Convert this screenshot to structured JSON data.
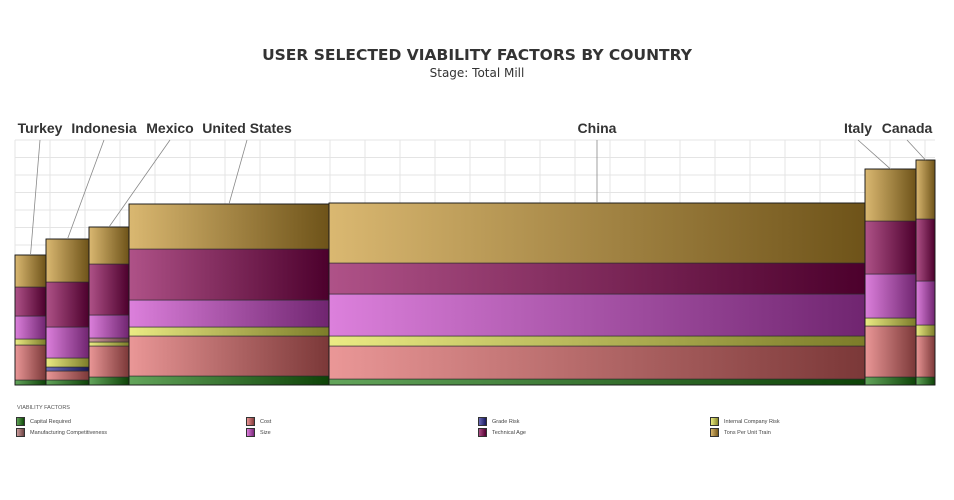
{
  "chart_data": {
    "type": "bar",
    "subtype": "variable-width stacked bar (mekko)",
    "title": "USER SELECTED VIABILITY FACTORS BY COUNTRY",
    "subtitle": "Stage: Total Mill",
    "legend_title": "VIABILITY FACTORS",
    "legend_position": "bottom",
    "grid": true,
    "ylim": [
      0,
      245
    ],
    "series": [
      {
        "name": "Capital Required",
        "color": "#1a7a0e",
        "values": [
          5,
          5,
          8,
          9,
          6,
          8,
          8
        ]
      },
      {
        "name": "Cost",
        "color": "#e06666",
        "values": [
          35,
          9,
          31,
          40,
          33,
          51,
          41
        ]
      },
      {
        "name": "Grade Risk",
        "color": "#2a2a9a",
        "values": [
          0,
          4,
          0,
          0,
          0,
          0,
          0
        ]
      },
      {
        "name": "Internal Company Risk",
        "color": "#e2e24a",
        "values": [
          6,
          9,
          4,
          9,
          10,
          8,
          11
        ]
      },
      {
        "name": "Manufacturing Competitiveness",
        "color": "#b57070",
        "values": [
          0,
          0,
          4,
          0,
          0,
          0,
          0
        ]
      },
      {
        "name": "Size",
        "color": "#cc44cc",
        "values": [
          23,
          31,
          23,
          27,
          42,
          44,
          44
        ]
      },
      {
        "name": "Technical Age",
        "color": "#8a0050",
        "values": [
          29,
          45,
          51,
          51,
          31,
          53,
          62
        ]
      },
      {
        "name": "Tons Per Unit Train",
        "color": "#c8962e",
        "values": [
          32,
          43,
          37,
          45,
          60,
          52,
          59
        ]
      }
    ],
    "categories": [
      "Turkey",
      "Indonesia",
      "Mexico",
      "United States",
      "China",
      "Italy",
      "Canada"
    ],
    "widths": [
      31,
      43,
      40,
      200,
      536,
      51,
      19
    ]
  },
  "legend": {
    "title": "VIABILITY FACTORS",
    "items": [
      {
        "label": "Capital Required",
        "color": "#1a7a0e"
      },
      {
        "label": "Cost",
        "color": "#e06666"
      },
      {
        "label": "Grade Risk",
        "color": "#2a2a9a"
      },
      {
        "label": "Internal Company Risk",
        "color": "#e2e24a"
      },
      {
        "label": "Manufacturing Competitiveness",
        "color": "#b57070"
      },
      {
        "label": "Size",
        "color": "#cc44cc"
      },
      {
        "label": "Technical Age",
        "color": "#8a0050"
      },
      {
        "label": "Tons Per Unit Train",
        "color": "#c8962e"
      }
    ]
  }
}
